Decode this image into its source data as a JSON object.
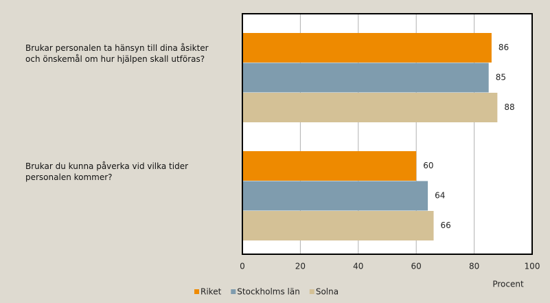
{
  "chart_data": {
    "type": "bar",
    "orientation": "horizontal",
    "categories": [
      "Brukar personalen ta hänsyn till dina åsikter och önskemål om hur hjälpen skall utföras?",
      "Brukar du kunna påverka vid vilka tider personalen kommer?"
    ],
    "series": [
      {
        "name": "Riket",
        "color": "#ee8a00",
        "values": [
          86,
          60
        ]
      },
      {
        "name": "Stockholms län",
        "color": "#7f9cae",
        "values": [
          85,
          64
        ]
      },
      {
        "name": "Solna",
        "color": "#d4c196",
        "values": [
          88,
          66
        ]
      }
    ],
    "xlabel": "Procent",
    "xlim": [
      0,
      100
    ],
    "xticks": [
      0,
      20,
      40,
      60,
      80,
      100
    ],
    "grid": true,
    "legend": "bottom"
  }
}
